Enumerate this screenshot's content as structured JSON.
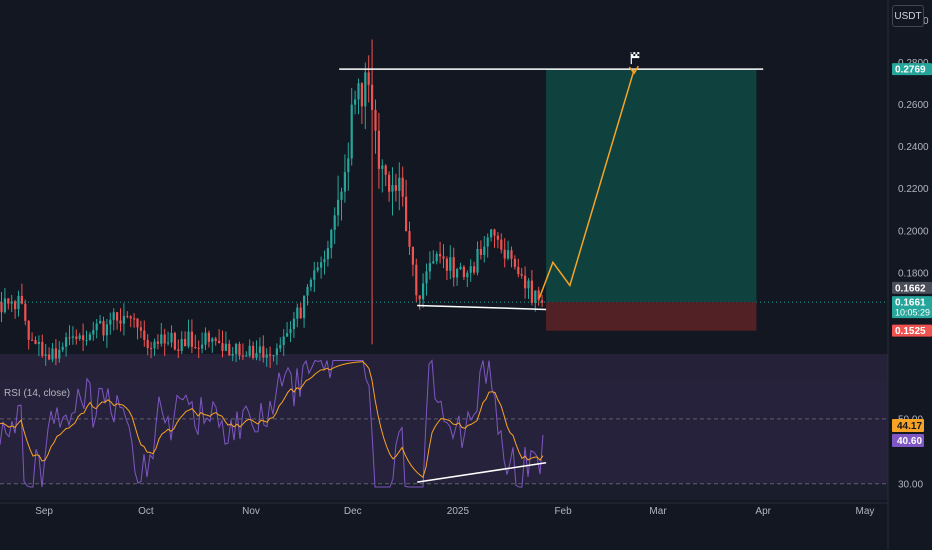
{
  "currency": "USDT",
  "indicator_label": "RSI (14, close)",
  "colors": {
    "background": "#131722",
    "up": "#26a69a",
    "down": "#ef5350",
    "target_zone": "#0f4a43",
    "stop_zone": "#5a2226",
    "projection": "#f7a325",
    "rsi_line": "#7e57c2",
    "rsi_ma": "#f7a325",
    "rsi_band": "#2a2440"
  },
  "chart_data": [
    {
      "type": "candlestick",
      "title": "",
      "x_ticks": [
        "Sep",
        "Oct",
        "Nov",
        "Dec",
        "2025",
        "Feb",
        "Mar",
        "Apr",
        "May"
      ],
      "y_ticks": [
        "0.3000",
        "0.2800",
        "0.2600",
        "0.2400",
        "0.2200",
        "0.2000",
        "0.1800"
      ],
      "ylim": [
        0.13,
        0.305
      ],
      "price_tags": [
        {
          "value": 0.2769,
          "text": "0.2769",
          "color": "#26a69a"
        },
        {
          "value": 0.1662,
          "text": "0.1662",
          "color": "#4a4e5a"
        },
        {
          "value": 0.1661,
          "text": "0.1661",
          "sub": "10:05:29",
          "color": "#26a69a"
        },
        {
          "value": 0.1525,
          "text": "0.1525",
          "color": "#ef5350"
        }
      ],
      "resistance_level": 0.2769,
      "target": 0.2769,
      "entry": 0.1661,
      "stop": 0.1525,
      "series": [
        {
          "date": "2024-08-26",
          "close": 0.155
        },
        {
          "date": "2024-09-01",
          "close": 0.14
        },
        {
          "date": "2024-09-15",
          "close": 0.15
        },
        {
          "date": "2024-09-25",
          "close": 0.16
        },
        {
          "date": "2024-10-01",
          "close": 0.145
        },
        {
          "date": "2024-10-15",
          "close": 0.148
        },
        {
          "date": "2024-10-25",
          "close": 0.145
        },
        {
          "date": "2024-11-05",
          "close": 0.14
        },
        {
          "date": "2024-11-15",
          "close": 0.16
        },
        {
          "date": "2024-11-25",
          "close": 0.2
        },
        {
          "date": "2024-12-01",
          "close": 0.255
        },
        {
          "date": "2024-12-05",
          "close": 0.275
        },
        {
          "date": "2024-12-10",
          "close": 0.225
        },
        {
          "date": "2024-12-15",
          "close": 0.22
        },
        {
          "date": "2024-12-20",
          "close": 0.17
        },
        {
          "date": "2024-12-25",
          "close": 0.185
        },
        {
          "date": "2025-01-05",
          "close": 0.18
        },
        {
          "date": "2025-01-10",
          "close": 0.2
        },
        {
          "date": "2025-01-15",
          "close": 0.19
        },
        {
          "date": "2025-01-20",
          "close": 0.175
        },
        {
          "date": "2025-01-25",
          "close": 0.166
        }
      ]
    },
    {
      "type": "line",
      "title": "RSI (14, close)",
      "y_ticks": [
        "50.00",
        "30.00"
      ],
      "value_tags": [
        {
          "text": "44.17",
          "color": "#f7a325",
          "fg": "#131722"
        },
        {
          "text": "40.60",
          "color": "#7e57c2",
          "fg": "#ffffff"
        }
      ],
      "ylim": [
        25,
        62
      ]
    }
  ]
}
